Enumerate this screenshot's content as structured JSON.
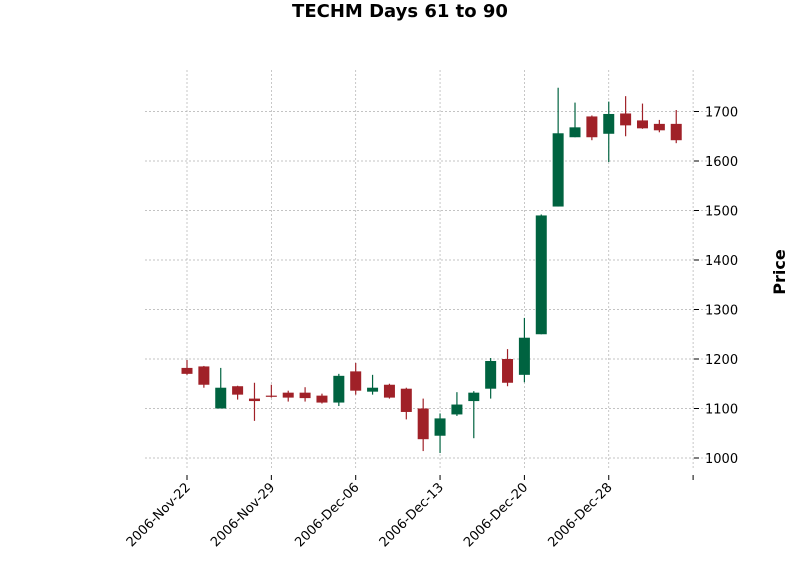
{
  "chart_data": {
    "type": "candlestick",
    "title": "TECHM Days 61 to 90",
    "ylabel": "Price",
    "xlabel": "",
    "ylim": [
      975,
      1780
    ],
    "y_ticks": [
      1000,
      1100,
      1200,
      1300,
      1400,
      1500,
      1600,
      1700
    ],
    "x_tick_labels": [
      "2006-Nov-22",
      "2006-Nov-29",
      "2006-Dec-06",
      "2006-Dec-13",
      "2006-Dec-20",
      "2006-Dec-28",
      ""
    ],
    "x_tick_positions": [
      0,
      5,
      10,
      15,
      20,
      25,
      30
    ],
    "grid": true,
    "colors": {
      "up": "#006340",
      "down": "#a02128",
      "grid": "#b0b0b0",
      "axis": "#000000"
    },
    "candles": [
      {
        "o": 1182,
        "h": 1198,
        "l": 1168,
        "c": 1170
      },
      {
        "o": 1185,
        "h": 1186,
        "l": 1142,
        "c": 1148
      },
      {
        "o": 1100,
        "h": 1182,
        "l": 1100,
        "c": 1142
      },
      {
        "o": 1145,
        "h": 1146,
        "l": 1118,
        "c": 1128
      },
      {
        "o": 1120,
        "h": 1152,
        "l": 1075,
        "c": 1115
      },
      {
        "o": 1126,
        "h": 1148,
        "l": 1122,
        "c": 1124
      },
      {
        "o": 1132,
        "h": 1136,
        "l": 1114,
        "c": 1122
      },
      {
        "o": 1132,
        "h": 1143,
        "l": 1114,
        "c": 1121
      },
      {
        "o": 1126,
        "h": 1130,
        "l": 1110,
        "c": 1112
      },
      {
        "o": 1112,
        "h": 1170,
        "l": 1105,
        "c": 1166
      },
      {
        "o": 1175,
        "h": 1192,
        "l": 1128,
        "c": 1136
      },
      {
        "o": 1134,
        "h": 1168,
        "l": 1128,
        "c": 1142
      },
      {
        "o": 1148,
        "h": 1150,
        "l": 1120,
        "c": 1122
      },
      {
        "o": 1140,
        "h": 1142,
        "l": 1078,
        "c": 1093
      },
      {
        "o": 1100,
        "h": 1120,
        "l": 1014,
        "c": 1038
      },
      {
        "o": 1045,
        "h": 1090,
        "l": 1010,
        "c": 1080
      },
      {
        "o": 1088,
        "h": 1133,
        "l": 1085,
        "c": 1108
      },
      {
        "o": 1115,
        "h": 1135,
        "l": 1040,
        "c": 1132
      },
      {
        "o": 1140,
        "h": 1202,
        "l": 1120,
        "c": 1196
      },
      {
        "o": 1200,
        "h": 1220,
        "l": 1145,
        "c": 1152
      },
      {
        "o": 1168,
        "h": 1283,
        "l": 1153,
        "c": 1243
      },
      {
        "o": 1250,
        "h": 1492,
        "l": 1250,
        "c": 1490
      },
      {
        "o": 1508,
        "h": 1748,
        "l": 1508,
        "c": 1656
      },
      {
        "o": 1648,
        "h": 1718,
        "l": 1648,
        "c": 1668
      },
      {
        "o": 1690,
        "h": 1692,
        "l": 1642,
        "c": 1648
      },
      {
        "o": 1655,
        "h": 1720,
        "l": 1598,
        "c": 1695
      },
      {
        "o": 1696,
        "h": 1731,
        "l": 1650,
        "c": 1672
      },
      {
        "o": 1682,
        "h": 1716,
        "l": 1665,
        "c": 1666
      },
      {
        "o": 1675,
        "h": 1683,
        "l": 1658,
        "c": 1662
      },
      {
        "o": 1675,
        "h": 1703,
        "l": 1636,
        "c": 1642
      }
    ]
  }
}
